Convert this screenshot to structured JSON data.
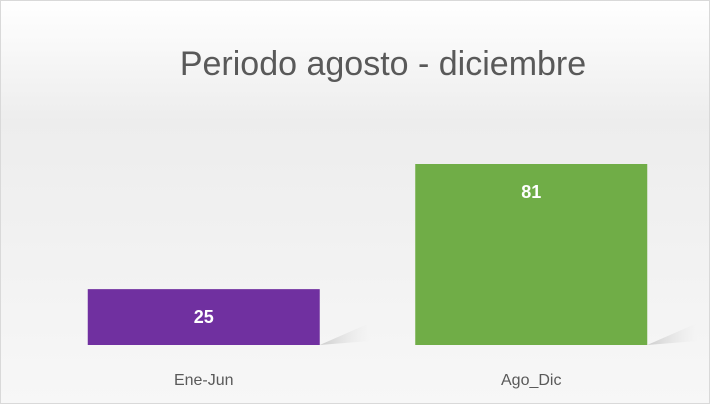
{
  "chart_data": {
    "type": "bar",
    "title": "Periodo agosto - diciembre",
    "categories": [
      "Ene-Jun",
      "Ago_Dic"
    ],
    "values": [
      25,
      81
    ],
    "colors": [
      "#7030a0",
      "#70ad47"
    ]
  }
}
